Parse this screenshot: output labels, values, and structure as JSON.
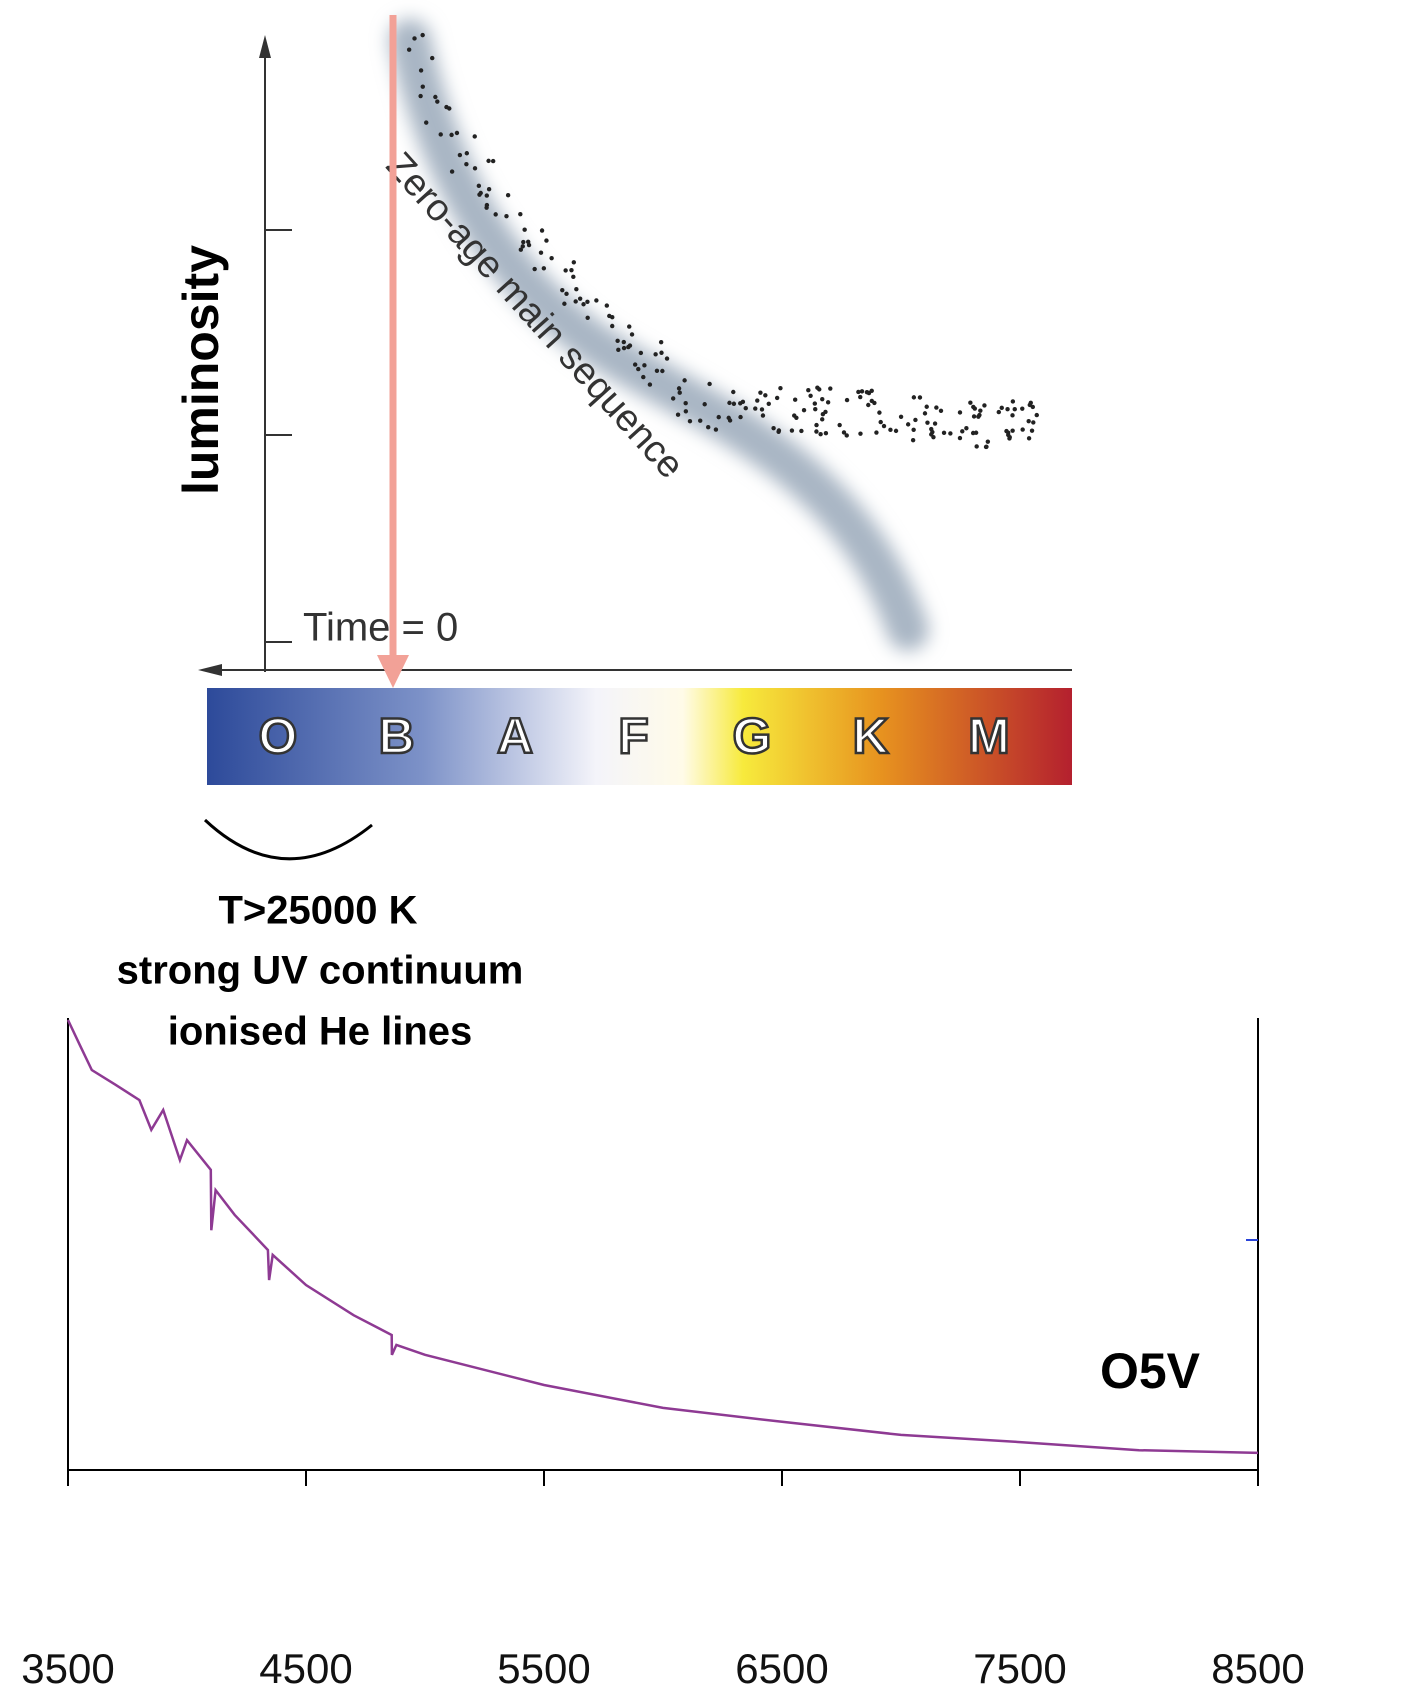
{
  "hr_diagram": {
    "y_label": "luminosity",
    "sequence_label": "Zero-age main sequence",
    "time_label": "Time = 0",
    "spectral_classes": [
      "O",
      "B",
      "A",
      "F",
      "G",
      "K",
      "M"
    ]
  },
  "annotation": [
    "T>25000 K",
    "strong UV continuum",
    "ionised He lines"
  ],
  "chart_data": {
    "type": "line",
    "x": [
      3500,
      3550,
      3600,
      3700,
      3800,
      3850,
      3900,
      3970,
      4000,
      4100,
      4102,
      4120,
      4200,
      4340,
      4345,
      4360,
      4500,
      4700,
      4860,
      4861,
      4880,
      5000,
      5500,
      6000,
      6500,
      7000,
      7500,
      8000,
      8500
    ],
    "series": [
      {
        "name": "O5V",
        "color": "#8e3a93",
        "values": [
          1.0,
          0.944,
          0.889,
          0.856,
          0.822,
          0.756,
          0.8,
          0.689,
          0.733,
          0.667,
          0.533,
          0.622,
          0.567,
          0.489,
          0.422,
          0.478,
          0.411,
          0.344,
          0.3,
          0.256,
          0.278,
          0.256,
          0.189,
          0.138,
          0.107,
          0.078,
          0.062,
          0.044,
          0.038
        ]
      }
    ],
    "xlim": [
      3500,
      8500
    ],
    "xticks": [
      3500,
      4500,
      5500,
      6500,
      7500,
      8500
    ],
    "ylim": [
      0,
      1
    ]
  }
}
